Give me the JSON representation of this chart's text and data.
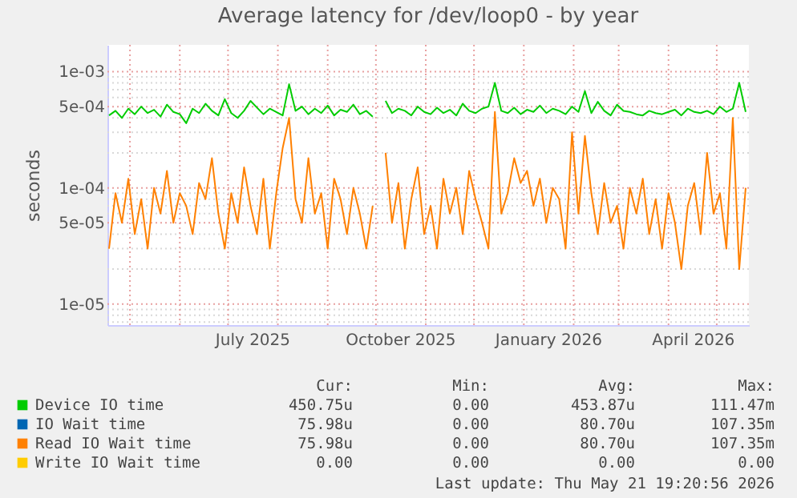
{
  "chart_data": {
    "type": "line",
    "title": "Average latency for /dev/loop0 - by year",
    "ylabel": "seconds",
    "log": "y",
    "grid": true,
    "legend": "bottom",
    "xlim": [
      "2025-04-17",
      "2026-05-21"
    ],
    "xticks": [
      {
        "value": "2025-05-01",
        "label": null
      },
      {
        "value": "2025-06-01",
        "label": null
      },
      {
        "value": "2025-07-01",
        "label": null
      },
      {
        "value": "2025-07-16",
        "label": "July 2025"
      },
      {
        "value": "2025-08-01",
        "label": null
      },
      {
        "value": "2025-09-01",
        "label": null
      },
      {
        "value": "2025-10-01",
        "label": null
      },
      {
        "value": "2025-10-16",
        "label": "October 2025"
      },
      {
        "value": "2025-11-01",
        "label": null
      },
      {
        "value": "2025-12-01",
        "label": null
      },
      {
        "value": "2026-01-01",
        "label": null
      },
      {
        "value": "2026-01-16",
        "label": "January 2026"
      },
      {
        "value": "2026-02-01",
        "label": null
      },
      {
        "value": "2026-03-01",
        "label": null
      },
      {
        "value": "2026-04-01",
        "label": null
      },
      {
        "value": "2026-04-16",
        "label": "April 2026"
      },
      {
        "value": "2026-05-01",
        "label": null
      }
    ],
    "ylim": [
      6.6e-06,
      0.0017
    ],
    "yticks": [
      {
        "value": 7e-06,
        "label": null
      },
      {
        "value": 8e-06,
        "label": null
      },
      {
        "value": 9e-06,
        "label": null
      },
      {
        "value": 1e-05,
        "label": "1e-05"
      },
      {
        "value": 2e-05,
        "label": null
      },
      {
        "value": 3e-05,
        "label": null
      },
      {
        "value": 4e-05,
        "label": null
      },
      {
        "value": 5e-05,
        "label": "5e-05"
      },
      {
        "value": 6e-05,
        "label": null
      },
      {
        "value": 7e-05,
        "label": null
      },
      {
        "value": 8e-05,
        "label": null
      },
      {
        "value": 9e-05,
        "label": null
      },
      {
        "value": 0.0001,
        "label": "1e-04"
      },
      {
        "value": 0.0002,
        "label": null
      },
      {
        "value": 0.0003,
        "label": null
      },
      {
        "value": 0.0004,
        "label": null
      },
      {
        "value": 0.0005,
        "label": "5e-04"
      },
      {
        "value": 0.0006,
        "label": null
      },
      {
        "value": 0.0007,
        "label": null
      },
      {
        "value": 0.0008,
        "label": null
      },
      {
        "value": 0.0009,
        "label": null
      },
      {
        "value": 0.001,
        "label": "1e-03"
      }
    ],
    "x": [
      "2025-04-18",
      "2025-04-22",
      "2025-04-26",
      "2025-04-30",
      "2025-05-04",
      "2025-05-08",
      "2025-05-12",
      "2025-05-16",
      "2025-05-20",
      "2025-05-24",
      "2025-05-28",
      "2025-06-01",
      "2025-06-05",
      "2025-06-09",
      "2025-06-13",
      "2025-06-17",
      "2025-06-21",
      "2025-06-25",
      "2025-06-29",
      "2025-07-03",
      "2025-07-07",
      "2025-07-11",
      "2025-07-15",
      "2025-07-19",
      "2025-07-23",
      "2025-07-27",
      "2025-07-31",
      "2025-08-04",
      "2025-08-08",
      "2025-08-12",
      "2025-08-16",
      "2025-08-20",
      "2025-08-24",
      "2025-08-28",
      "2025-09-01",
      "2025-09-05",
      "2025-09-09",
      "2025-09-13",
      "2025-09-17",
      "2025-09-21",
      "2025-09-25",
      "2025-09-29",
      "2025-10-03",
      "2025-10-07",
      "2025-10-11",
      "2025-10-15",
      "2025-10-19",
      "2025-10-23",
      "2025-10-27",
      "2025-10-31",
      "2025-11-04",
      "2025-11-08",
      "2025-11-12",
      "2025-11-16",
      "2025-11-20",
      "2025-11-24",
      "2025-11-28",
      "2025-12-02",
      "2025-12-06",
      "2025-12-10",
      "2025-12-14",
      "2025-12-18",
      "2025-12-22",
      "2025-12-26",
      "2025-12-30",
      "2026-01-03",
      "2026-01-07",
      "2026-01-11",
      "2026-01-15",
      "2026-01-19",
      "2026-01-23",
      "2026-01-27",
      "2026-01-31",
      "2026-02-04",
      "2026-02-08",
      "2026-02-12",
      "2026-02-16",
      "2026-02-20",
      "2026-02-24",
      "2026-02-28",
      "2026-03-04",
      "2026-03-08",
      "2026-03-12",
      "2026-03-16",
      "2026-03-20",
      "2026-03-24",
      "2026-03-28",
      "2026-04-01",
      "2026-04-05",
      "2026-04-09",
      "2026-04-13",
      "2026-04-17",
      "2026-04-21",
      "2026-04-25",
      "2026-04-29",
      "2026-05-03",
      "2026-05-07",
      "2026-05-11",
      "2026-05-15",
      "2026-05-19"
    ],
    "series": [
      {
        "name": "Device IO time",
        "color": "#00cc00",
        "values": [
          0.00042,
          0.00046,
          0.0004,
          0.00048,
          0.00043,
          0.0005,
          0.00044,
          0.00047,
          0.00041,
          0.00052,
          0.00045,
          0.00043,
          0.00036,
          0.00048,
          0.00044,
          0.00053,
          0.00046,
          0.00042,
          0.00058,
          0.00044,
          0.0004,
          0.00046,
          0.00056,
          0.00049,
          0.00043,
          0.00048,
          0.00045,
          0.00042,
          0.00078,
          0.00046,
          0.0005,
          0.00043,
          0.00048,
          0.00044,
          0.00051,
          0.00042,
          0.00047,
          0.00045,
          0.00052,
          0.00043,
          0.00046,
          0.00041,
          null,
          0.00056,
          0.00044,
          0.00048,
          0.00046,
          0.00042,
          0.0005,
          0.00045,
          0.00043,
          0.00049,
          0.00044,
          0.00047,
          0.00042,
          0.00053,
          0.00046,
          0.00044,
          0.00048,
          0.0005,
          0.0008,
          0.00046,
          0.00044,
          0.00049,
          0.00043,
          0.00047,
          0.00045,
          0.00051,
          0.00044,
          0.00048,
          0.00046,
          0.00043,
          0.0005,
          0.00045,
          0.00068,
          0.00044,
          0.00055,
          0.00046,
          0.00042,
          0.00052,
          0.00046,
          0.00045,
          0.00043,
          0.00042,
          0.00046,
          0.00044,
          0.00043,
          0.00045,
          0.00047,
          0.00042,
          0.00048,
          0.00045,
          0.00044,
          0.00046,
          0.00043,
          0.0005,
          0.00045,
          0.00048,
          0.0008,
          0.00045
        ]
      },
      {
        "name": "IO Wait time",
        "color": "#0066b3",
        "values": [
          null,
          null,
          null,
          null,
          null,
          null,
          null,
          null,
          null,
          null,
          null,
          null,
          null,
          null,
          null,
          null,
          null,
          null,
          null,
          null,
          null,
          null,
          null,
          null,
          null,
          null,
          null,
          null,
          null,
          null,
          null,
          null,
          null,
          null,
          null,
          null,
          null,
          null,
          null,
          null,
          null,
          null,
          null,
          null,
          null,
          null,
          null,
          null,
          null,
          null,
          null,
          null,
          null,
          null,
          null,
          null,
          null,
          null,
          null,
          null,
          null,
          null,
          null,
          null,
          null,
          null,
          null,
          null,
          null,
          null,
          null,
          null,
          null,
          null,
          null,
          null,
          null,
          null,
          null,
          null,
          null,
          null,
          null,
          null,
          null,
          null,
          null,
          null,
          null,
          null,
          null,
          null,
          null,
          null,
          null,
          null,
          null,
          null,
          null,
          null
        ]
      },
      {
        "name": "Read IO Wait time",
        "color": "#ff8000",
        "values": [
          3e-05,
          9e-05,
          5e-05,
          0.00012,
          4e-05,
          8e-05,
          3e-05,
          0.0001,
          6e-05,
          0.00014,
          5e-05,
          9e-05,
          7e-05,
          4e-05,
          0.00011,
          8e-05,
          0.00018,
          6e-05,
          3e-05,
          9e-05,
          5e-05,
          0.00015,
          7e-05,
          4e-05,
          0.00012,
          3e-05,
          9e-05,
          0.00022,
          0.0004,
          8e-05,
          5e-05,
          0.00018,
          6e-05,
          9e-05,
          3e-05,
          0.00012,
          8e-05,
          4e-05,
          0.0001,
          6e-05,
          3e-05,
          7e-05,
          null,
          0.0002,
          5e-05,
          0.00011,
          3e-05,
          8e-05,
          0.00015,
          4e-05,
          7e-05,
          3e-05,
          0.00012,
          6e-05,
          0.0001,
          4e-05,
          0.00014,
          8e-05,
          5e-05,
          3e-05,
          0.00045,
          6e-05,
          9e-05,
          0.00018,
          0.00011,
          0.00014,
          7e-05,
          0.00012,
          5e-05,
          0.0001,
          8e-05,
          3e-05,
          0.0003,
          6e-05,
          0.00028,
          9e-05,
          4e-05,
          0.00011,
          5e-05,
          7e-05,
          3e-05,
          0.0001,
          6e-05,
          0.00012,
          4e-05,
          8e-05,
          3e-05,
          9e-05,
          5e-05,
          2e-05,
          7e-05,
          0.00011,
          4e-05,
          0.0002,
          6e-05,
          9e-05,
          3e-05,
          0.0004,
          2e-05,
          0.0001
        ]
      },
      {
        "name": "Write IO Wait time",
        "color": "#ffcc00",
        "values": [
          null,
          null,
          null,
          null,
          null,
          null,
          null,
          null,
          null,
          null,
          null,
          null,
          null,
          null,
          null,
          null,
          null,
          null,
          null,
          null,
          null,
          null,
          null,
          null,
          null,
          null,
          null,
          null,
          null,
          null,
          null,
          null,
          null,
          null,
          null,
          null,
          null,
          null,
          null,
          null,
          null,
          null,
          null,
          null,
          null,
          null,
          null,
          null,
          null,
          null,
          null,
          null,
          null,
          null,
          null,
          null,
          null,
          null,
          null,
          null,
          null,
          null,
          null,
          null,
          null,
          null,
          null,
          null,
          null,
          null,
          null,
          null,
          null,
          null,
          null,
          null,
          null,
          null,
          null,
          null,
          null,
          null,
          null,
          null,
          null,
          null,
          null,
          null,
          null,
          null,
          null,
          null,
          null,
          null,
          null,
          null,
          null,
          null,
          null,
          null
        ]
      }
    ],
    "annotations": [
      "Cur:",
      "Min:",
      "Avg:",
      "Max:",
      "450.75u",
      "0.00",
      "453.87u",
      "111.47m",
      "75.98u",
      "0.00",
      "80.70u",
      "107.35m",
      "75.98u",
      "0.00",
      "80.70u",
      "107.35m",
      "0.00",
      "0.00",
      "0.00",
      "0.00",
      "Last update: Thu May 21 19:20:56 2026"
    ]
  }
}
